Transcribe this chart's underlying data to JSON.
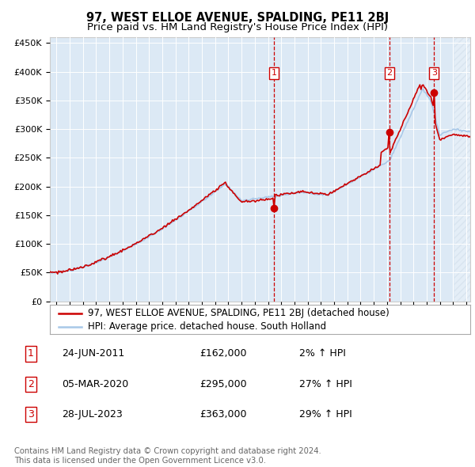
{
  "title": "97, WEST ELLOE AVENUE, SPALDING, PE11 2BJ",
  "subtitle": "Price paid vs. HM Land Registry's House Price Index (HPI)",
  "ylabel_ticks": [
    "£0",
    "£50K",
    "£100K",
    "£150K",
    "£200K",
    "£250K",
    "£300K",
    "£350K",
    "£400K",
    "£450K"
  ],
  "ytick_values": [
    0,
    50000,
    100000,
    150000,
    200000,
    250000,
    300000,
    350000,
    400000,
    450000
  ],
  "ylim": [
    0,
    460000
  ],
  "xlim_start": 1994.5,
  "xlim_end": 2026.3,
  "hpi_color": "#a8c8e8",
  "price_color": "#cc0000",
  "background_color": "#dce9f5",
  "transaction_dates": [
    2011.47,
    2020.17,
    2023.57
  ],
  "transaction_prices": [
    162000,
    295000,
    363000
  ],
  "transaction_labels": [
    "1",
    "2",
    "3"
  ],
  "legend_price_label": "97, WEST ELLOE AVENUE, SPALDING, PE11 2BJ (detached house)",
  "legend_hpi_label": "HPI: Average price. detached house. South Holland",
  "table_rows": [
    [
      "1",
      "24-JUN-2011",
      "£162,000",
      "2% ↑ HPI"
    ],
    [
      "2",
      "05-MAR-2020",
      "£295,000",
      "27% ↑ HPI"
    ],
    [
      "3",
      "28-JUL-2023",
      "£363,000",
      "29% ↑ HPI"
    ]
  ],
  "footer_text": "Contains HM Land Registry data © Crown copyright and database right 2024.\nThis data is licensed under the Open Government Licence v3.0.",
  "title_fontsize": 10.5,
  "subtitle_fontsize": 9.5,
  "tick_fontsize": 8,
  "legend_fontsize": 8.5,
  "table_fontsize": 9
}
